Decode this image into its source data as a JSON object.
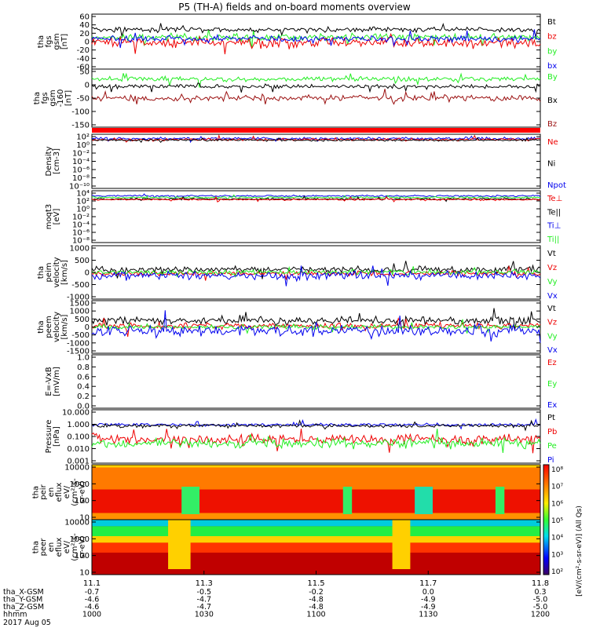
{
  "title": "P5 (TH-A) fields and on-board moments overview",
  "colors": {
    "black": "#000000",
    "red": "#ee0000",
    "green": "#22ee22",
    "blue": "#0000ee",
    "darkred": "#9b1010"
  },
  "chart_data": [
    {
      "id": "fgs",
      "type": "line",
      "ylabel": [
        "tha",
        "fgs",
        "gsm",
        "[nT]"
      ],
      "yticks": [
        "60",
        "40",
        "20",
        "0",
        "-20",
        "-40",
        "-60"
      ],
      "ylim": [
        -60,
        60
      ],
      "series": [
        {
          "name": "Bt",
          "color": "black"
        },
        {
          "name": "bz",
          "color": "red"
        },
        {
          "name": "by",
          "color": "green"
        },
        {
          "name": "bx",
          "color": "blue"
        }
      ]
    },
    {
      "id": "fgs_offset",
      "type": "line",
      "ylabel": [
        "tha",
        "fgs",
        "gsm",
        "-160",
        "[nT]"
      ],
      "yticks": [
        "50",
        "0",
        "-50",
        "-100",
        "-150"
      ],
      "ylim": [
        -180,
        55
      ],
      "series": [
        {
          "name": "By",
          "color": "green"
        },
        {
          "name": "Bx",
          "color": "black"
        },
        {
          "name": "Bz",
          "color": "darkred"
        }
      ]
    },
    {
      "id": "density",
      "type": "line",
      "ylabel": [
        "Density",
        "[cm-3]"
      ],
      "yticks": [
        "10²",
        "10⁰",
        "10⁻²",
        "10⁻⁴",
        "10⁻⁶",
        "10⁻⁸",
        "10⁻¹⁰"
      ],
      "log": true,
      "series": [
        {
          "name": "Ne",
          "color": "red"
        },
        {
          "name": "Ni",
          "color": "black"
        },
        {
          "name": "Npot",
          "color": "blue"
        }
      ]
    },
    {
      "id": "temp",
      "type": "line",
      "ylabel": [
        "moqt3",
        "[eV]"
      ],
      "yticks": [
        "10⁴",
        "10²",
        "10⁰",
        "10⁻²",
        "10⁻⁴",
        "10⁻⁶",
        "10⁻⁸"
      ],
      "log": true,
      "series": [
        {
          "name": "Te⊥",
          "color": "red"
        },
        {
          "name": "Te||",
          "color": "black"
        },
        {
          "name": "Ti⊥",
          "color": "blue"
        },
        {
          "name": "Ti||",
          "color": "green"
        }
      ]
    },
    {
      "id": "peim",
      "type": "line",
      "ylabel": [
        "tha",
        "peim",
        "velocity",
        "[km/s]"
      ],
      "yticks": [
        "1000",
        "500",
        "0",
        "-500",
        "-1000"
      ],
      "ylim": [
        -1000,
        1000
      ],
      "series": [
        {
          "name": "Vt",
          "color": "black"
        },
        {
          "name": "Vz",
          "color": "red"
        },
        {
          "name": "Vy",
          "color": "green"
        },
        {
          "name": "Vx",
          "color": "blue"
        }
      ]
    },
    {
      "id": "peem",
      "type": "line",
      "ylabel": [
        "tha",
        "peem",
        "velocity",
        "[km/s]"
      ],
      "yticks": [
        "1500",
        "1000",
        "500",
        "0",
        "-500",
        "-1000",
        "-1500"
      ],
      "ylim": [
        -1500,
        1500
      ],
      "series": [
        {
          "name": "Vt",
          "color": "black"
        },
        {
          "name": "Vz",
          "color": "red"
        },
        {
          "name": "Vy",
          "color": "green"
        },
        {
          "name": "Vx",
          "color": "blue"
        }
      ]
    },
    {
      "id": "efield",
      "type": "line",
      "ylabel": [
        "E=-VxB",
        "[mV/m]"
      ],
      "yticks": [
        "1.0",
        "0.8",
        "0.6",
        "0.4",
        "0.2",
        "0.0"
      ],
      "ylim": [
        0,
        1
      ],
      "series": [
        {
          "name": "Ez",
          "color": "red"
        },
        {
          "name": "Ey",
          "color": "green"
        },
        {
          "name": "Ex",
          "color": "blue"
        }
      ]
    },
    {
      "id": "pressure",
      "type": "line",
      "ylabel": [
        "Pressure",
        "[nPa]"
      ],
      "yticks": [
        "10.000",
        "1.000",
        "0.100",
        "0.010",
        "0.001"
      ],
      "log": true,
      "series": [
        {
          "name": "Pt",
          "color": "black"
        },
        {
          "name": "Pb",
          "color": "red"
        },
        {
          "name": "Pe",
          "color": "green"
        },
        {
          "name": "Pi",
          "color": "blue"
        }
      ]
    },
    {
      "id": "peir",
      "type": "heatmap",
      "ylabel": [
        "tha",
        "peir",
        "en",
        "eflux",
        "eV/",
        "(cm²-s-",
        "sr-eV)"
      ],
      "yticks": [
        "10000",
        "1000",
        "100",
        "10"
      ],
      "log": true
    },
    {
      "id": "peer",
      "type": "heatmap",
      "ylabel": [
        "tha",
        "peer",
        "en",
        "eflux",
        "eV/",
        "(cm²-s-",
        "sr-eV)"
      ],
      "yticks": [
        "10000",
        "1000",
        "100",
        "10"
      ],
      "log": true
    }
  ],
  "colorbar": {
    "ticks": [
      "10⁸",
      "10⁷",
      "10⁶",
      "10⁵",
      "10⁴",
      "10³",
      "10²"
    ],
    "label": "[eV/(cm²-s-sr-eV)] (All Qs)"
  },
  "xaxis": {
    "ticks": [
      "11.1",
      "11.3",
      "11.5",
      "11.7",
      "11.8"
    ]
  },
  "footer": {
    "rows": [
      {
        "label": "tha_X-GSM",
        "values": [
          "-0.7",
          "-0.5",
          "-0.2",
          "0.0",
          "0.3"
        ]
      },
      {
        "label": "tha_Y-GSM",
        "values": [
          "-4.6",
          "-4.7",
          "-4.8",
          "-4.9",
          "-5.0"
        ]
      },
      {
        "label": "tha_Z-GSM",
        "values": [
          "-4.6",
          "-4.7",
          "-4.8",
          "-4.9",
          "-5.0"
        ]
      },
      {
        "label": "hhmm",
        "values": [
          "1000",
          "1030",
          "1100",
          "1130",
          "1200"
        ]
      }
    ],
    "date": "2017 Aug 05"
  }
}
